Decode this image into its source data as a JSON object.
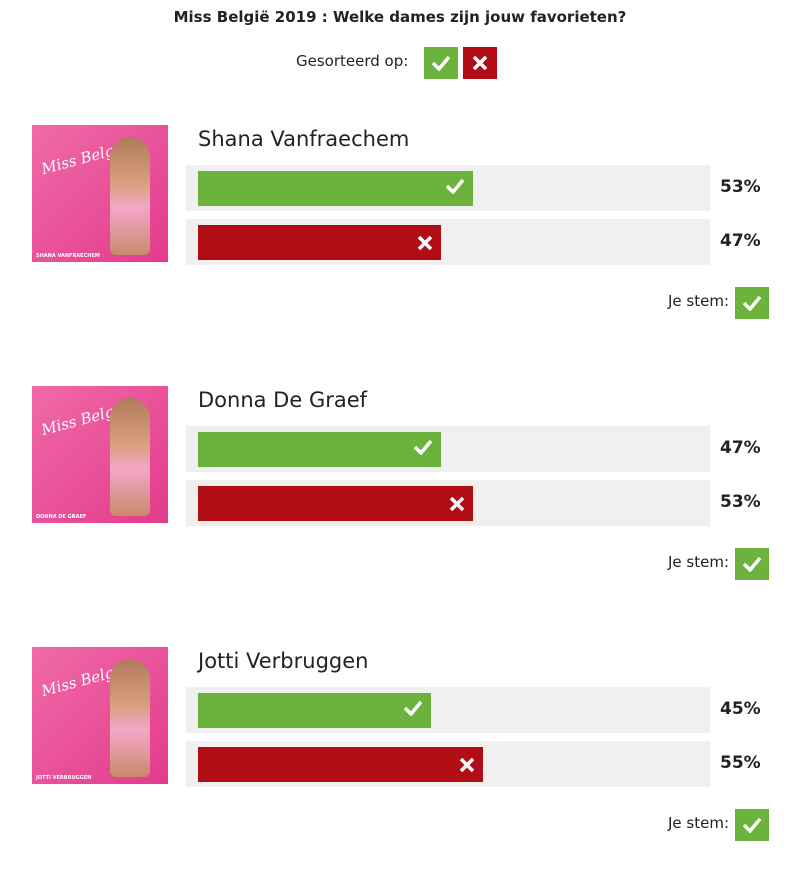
{
  "header": {
    "title": "Miss België 2019 : Welke dames zijn jouw favorieten?",
    "sort_label": "Gesorteerd op:"
  },
  "photo_logo": "Miss Belgium",
  "vote_label": "Je stem:",
  "candidates": [
    {
      "name": "Shana Vanfraechem",
      "photo_caption": "SHANA VANFRAECHEM",
      "values": [
        53,
        47
      ],
      "value_labels": [
        "53%",
        "47%"
      ]
    },
    {
      "name": "Donna De Graef",
      "photo_caption": "DONNA DE GRAEF",
      "values": [
        47,
        53
      ],
      "value_labels": [
        "47%",
        "53%"
      ]
    },
    {
      "name": "Jotti Verbruggen",
      "photo_caption": "JOTTI VERBRUGGEN",
      "values": [
        45,
        55
      ],
      "value_labels": [
        "45%",
        "55%"
      ]
    }
  ]
}
